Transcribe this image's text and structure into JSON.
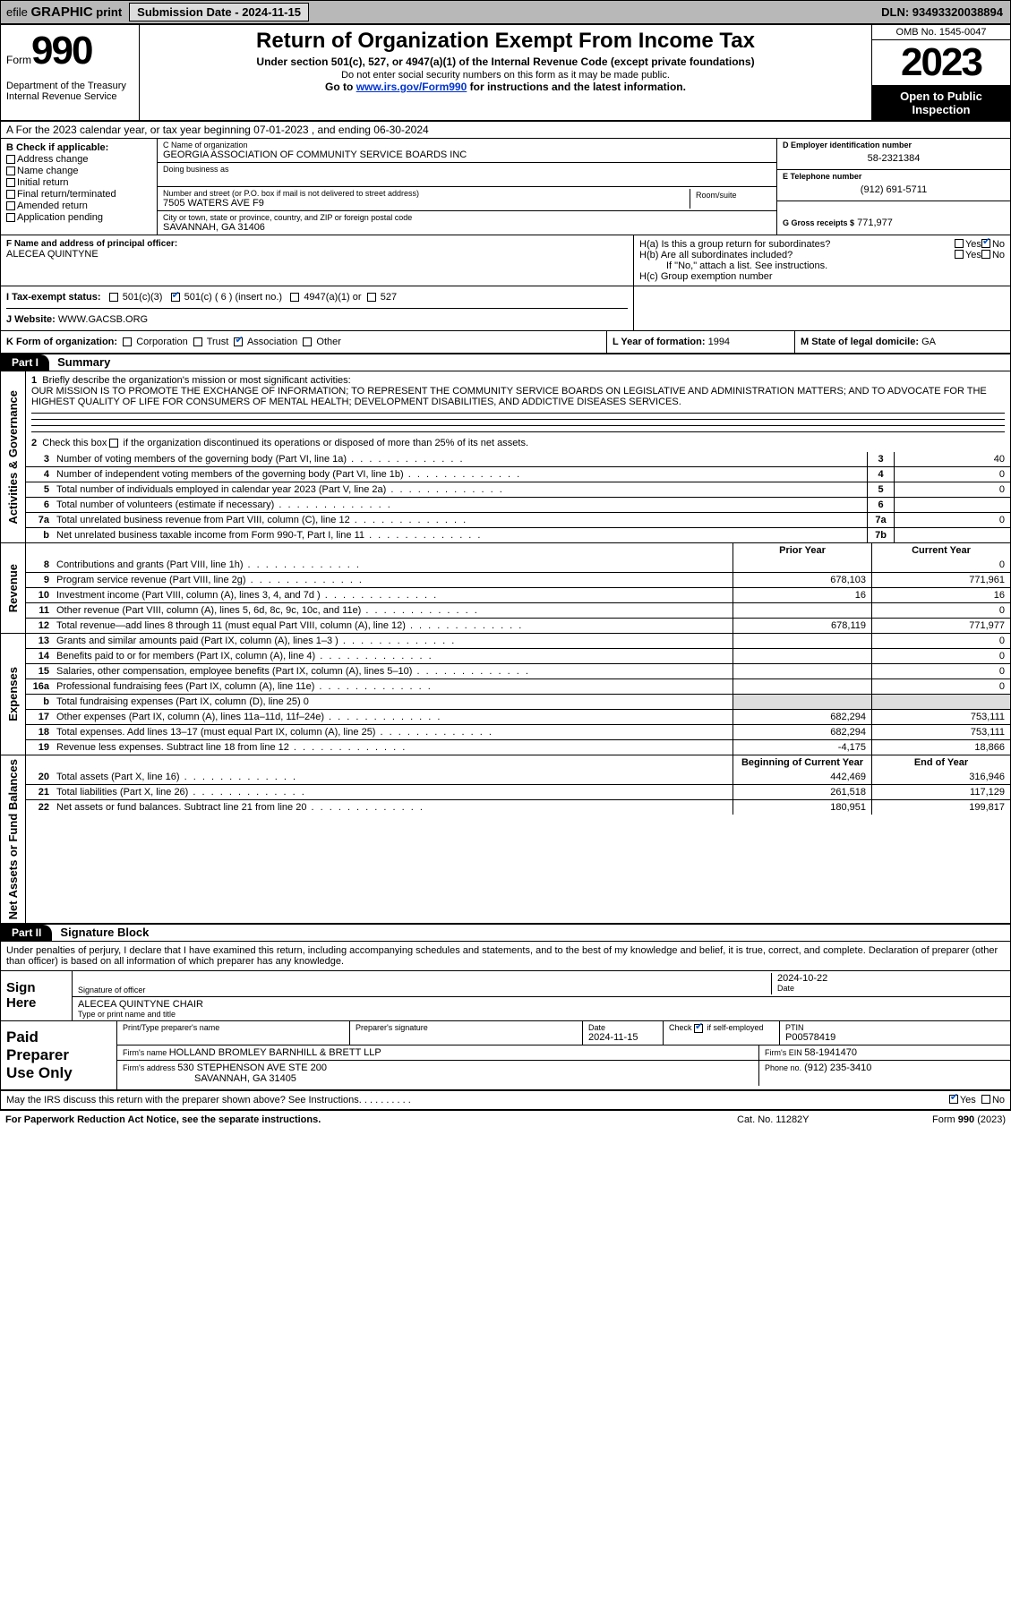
{
  "topbar": {
    "efile_prefix": "efile",
    "efile_bold": "GRAPHIC",
    "efile_suffix": "print",
    "submission_label": "Submission Date - 2024-11-15",
    "dln": "DLN: 93493320038894"
  },
  "header": {
    "form_label": "Form",
    "form_number": "990",
    "dept": "Department of the Treasury\nInternal Revenue Service",
    "title": "Return of Organization Exempt From Income Tax",
    "sub": "Under section 501(c), 527, or 4947(a)(1) of the Internal Revenue Code (except private foundations)",
    "sub2": "Do not enter social security numbers on this form as it may be made public.",
    "goto_prefix": "Go to ",
    "goto_link": "www.irs.gov/Form990",
    "goto_suffix": " for instructions and the latest information.",
    "omb": "OMB No. 1545-0047",
    "year": "2023",
    "inspect": "Open to Public Inspection"
  },
  "row_a": "A  For the 2023 calendar year, or tax year beginning 07-01-2023   , and ending 06-30-2024",
  "col_b": {
    "label": "B Check if applicable:",
    "opts": [
      "Address change",
      "Name change",
      "Initial return",
      "Final return/terminated",
      "Amended return",
      "Application pending"
    ]
  },
  "col_c": {
    "name_label": "C Name of organization",
    "name": "GEORGIA ASSOCIATION OF COMMUNITY SERVICE BOARDS INC",
    "dba_label": "Doing business as",
    "addr_label": "Number and street (or P.O. box if mail is not delivered to street address)",
    "room_label": "Room/suite",
    "addr": "7505 WATERS AVE F9",
    "city_label": "City or town, state or province, country, and ZIP or foreign postal code",
    "city": "SAVANNAH, GA  31406"
  },
  "col_d": {
    "ein_label": "D Employer identification number",
    "ein": "58-2321384",
    "tel_label": "E Telephone number",
    "tel": "(912) 691-5711",
    "gross_label": "G Gross receipts $",
    "gross": "771,977"
  },
  "row_f": {
    "label": "F Name and address of principal officer:",
    "name": "ALECEA QUINTYNE"
  },
  "row_h": {
    "ha": "H(a)  Is this a group return for subordinates?",
    "hb": "H(b)  Are all subordinates included?",
    "hb_note": "If \"No,\" attach a list. See instructions.",
    "hc": "H(c)  Group exemption number  ",
    "yes": "Yes",
    "no": "No"
  },
  "row_i": {
    "label": "I   Tax-exempt status:",
    "o1": "501(c)(3)",
    "o2": "501(c) ( 6 ) (insert no.)",
    "o3": "4947(a)(1) or",
    "o4": "527"
  },
  "row_j": {
    "label": "J   Website: ",
    "val": "WWW.GACSB.ORG"
  },
  "row_k": {
    "label": "K Form of organization:",
    "opts": [
      "Corporation",
      "Trust",
      "Association",
      "Other"
    ],
    "year_label": "L Year of formation:",
    "year": "1994",
    "dom_label": "M State of legal domicile:",
    "dom": "GA"
  },
  "part1": {
    "hdr": "Part I",
    "title": "Summary",
    "side_gov": "Activities & Governance",
    "side_rev": "Revenue",
    "side_exp": "Expenses",
    "side_net": "Net Assets or Fund Balances",
    "q1_label": "1",
    "q1": "Briefly describe the organization's mission or most significant activities:",
    "mission": "OUR MISSION IS TO PROMOTE THE EXCHANGE OF INFORMATION; TO REPRESENT THE COMMUNITY SERVICE BOARDS ON LEGISLATIVE AND ADMINISTRATION MATTERS; AND TO ADVOCATE FOR THE HIGHEST QUALITY OF LIFE FOR CONSUMERS OF MENTAL HEALTH; DEVELOPMENT DISABILITIES, AND ADDICTIVE DISEASES SERVICES.",
    "q2_label": "2",
    "q2": "Check this box      if the organization discontinued its operations or disposed of more than 25% of its net assets.",
    "lines_gov": [
      {
        "n": "3",
        "d": "Number of voting members of the governing body (Part VI, line 1a)",
        "b": "3",
        "v": "40"
      },
      {
        "n": "4",
        "d": "Number of independent voting members of the governing body (Part VI, line 1b)",
        "b": "4",
        "v": "0"
      },
      {
        "n": "5",
        "d": "Total number of individuals employed in calendar year 2023 (Part V, line 2a)",
        "b": "5",
        "v": "0"
      },
      {
        "n": "6",
        "d": "Total number of volunteers (estimate if necessary)",
        "b": "6",
        "v": ""
      },
      {
        "n": "7a",
        "d": "Total unrelated business revenue from Part VIII, column (C), line 12",
        "b": "7a",
        "v": "0"
      },
      {
        "n": "b",
        "d": "Net unrelated business taxable income from Form 990-T, Part I, line 11",
        "b": "7b",
        "v": ""
      }
    ],
    "hdr_prior": "Prior Year",
    "hdr_curr": "Current Year",
    "lines_rev": [
      {
        "n": "8",
        "d": "Contributions and grants (Part VIII, line 1h)",
        "p": "",
        "c": "0"
      },
      {
        "n": "9",
        "d": "Program service revenue (Part VIII, line 2g)",
        "p": "678,103",
        "c": "771,961"
      },
      {
        "n": "10",
        "d": "Investment income (Part VIII, column (A), lines 3, 4, and 7d )",
        "p": "16",
        "c": "16"
      },
      {
        "n": "11",
        "d": "Other revenue (Part VIII, column (A), lines 5, 6d, 8c, 9c, 10c, and 11e)",
        "p": "",
        "c": "0"
      },
      {
        "n": "12",
        "d": "Total revenue—add lines 8 through 11 (must equal Part VIII, column (A), line 12)",
        "p": "678,119",
        "c": "771,977"
      }
    ],
    "lines_exp": [
      {
        "n": "13",
        "d": "Grants and similar amounts paid (Part IX, column (A), lines 1–3 )",
        "p": "",
        "c": "0"
      },
      {
        "n": "14",
        "d": "Benefits paid to or for members (Part IX, column (A), line 4)",
        "p": "",
        "c": "0"
      },
      {
        "n": "15",
        "d": "Salaries, other compensation, employee benefits (Part IX, column (A), lines 5–10)",
        "p": "",
        "c": "0"
      },
      {
        "n": "16a",
        "d": "Professional fundraising fees (Part IX, column (A), line 11e)",
        "p": "",
        "c": "0"
      },
      {
        "n": "b",
        "d": "Total fundraising expenses (Part IX, column (D), line 25) 0",
        "p": "",
        "c": "",
        "noval": true
      },
      {
        "n": "17",
        "d": "Other expenses (Part IX, column (A), lines 11a–11d, 11f–24e)",
        "p": "682,294",
        "c": "753,111"
      },
      {
        "n": "18",
        "d": "Total expenses. Add lines 13–17 (must equal Part IX, column (A), line 25)",
        "p": "682,294",
        "c": "753,111"
      },
      {
        "n": "19",
        "d": "Revenue less expenses. Subtract line 18 from line 12",
        "p": "-4,175",
        "c": "18,866"
      }
    ],
    "hdr_beg": "Beginning of Current Year",
    "hdr_end": "End of Year",
    "lines_net": [
      {
        "n": "20",
        "d": "Total assets (Part X, line 16)",
        "p": "442,469",
        "c": "316,946"
      },
      {
        "n": "21",
        "d": "Total liabilities (Part X, line 26)",
        "p": "261,518",
        "c": "117,129"
      },
      {
        "n": "22",
        "d": "Net assets or fund balances. Subtract line 21 from line 20",
        "p": "180,951",
        "c": "199,817"
      }
    ]
  },
  "part2": {
    "hdr": "Part II",
    "title": "Signature Block",
    "decl": "Under penalties of perjury, I declare that I have examined this return, including accompanying schedules and statements, and to the best of my knowledge and belief, it is true, correct, and complete. Declaration of preparer (other than officer) is based on all information of which preparer has any knowledge.",
    "sign_here": "Sign Here",
    "sig_label": "Signature of officer",
    "sig_name": "ALECEA QUINTYNE CHAIR",
    "sig_type": "Type or print name and title",
    "date_label": "Date",
    "date": "2024-10-22",
    "paid": "Paid Preparer Use Only",
    "p_name_label": "Print/Type preparer's name",
    "p_sig_label": "Preparer's signature",
    "p_date_label": "Date",
    "p_date": "2024-11-15",
    "p_check": "Check        if self-employed",
    "ptin_label": "PTIN",
    "ptin": "P00578419",
    "firm_label": "Firm's name     ",
    "firm": "HOLLAND BROMLEY BARNHILL & BRETT LLP",
    "firm_ein_label": "Firm's EIN  ",
    "firm_ein": "58-1941470",
    "firm_addr_label": "Firm's address ",
    "firm_addr": "530 STEPHENSON AVE STE 200",
    "firm_city": "SAVANNAH, GA  31405",
    "phone_label": "Phone no.",
    "phone": "(912) 235-3410",
    "discuss": "May the IRS discuss this return with the preparer shown above? See Instructions.",
    "yes": "Yes",
    "no": "No"
  },
  "footer": {
    "l": "For Paperwork Reduction Act Notice, see the separate instructions.",
    "m": "Cat. No. 11282Y",
    "r": "Form 990 (2023)"
  }
}
